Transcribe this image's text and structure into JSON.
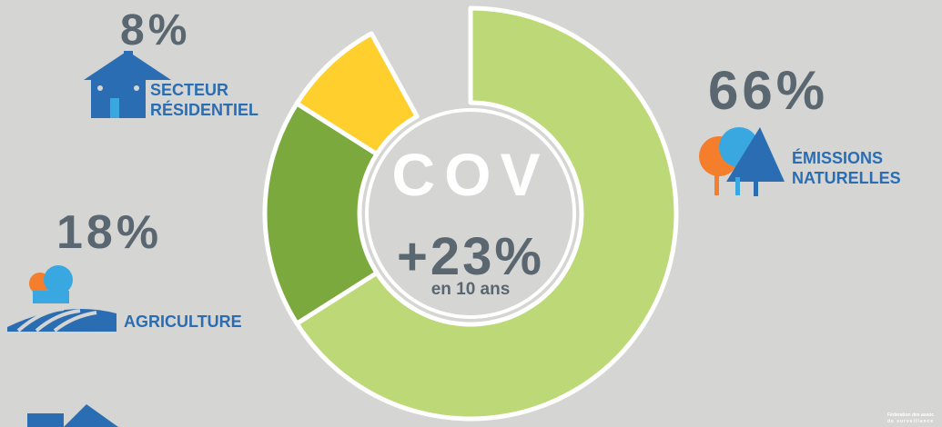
{
  "chart_data": {
    "type": "donut",
    "categories": [
      "ÉMISSIONS NATURELLES",
      "AGRICULTURE",
      "SECTEUR RÉSIDENTIEL"
    ],
    "values": [
      66,
      18,
      8
    ],
    "value_labels": [
      "66%",
      "18%",
      "8%"
    ],
    "colors": [
      "#bdd877",
      "#7ba93e",
      "#fecf2d"
    ],
    "center_title": "COV",
    "center_value": "+23%",
    "center_note": "en 10 ans",
    "footer": [
      "Fédération des assoc",
      "de surveillance"
    ]
  }
}
